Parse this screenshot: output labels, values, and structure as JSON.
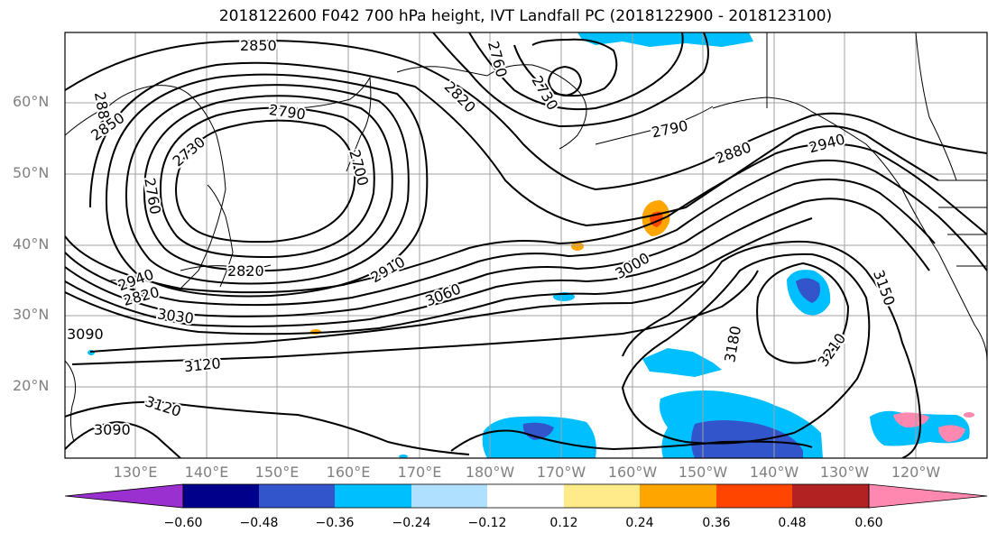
{
  "title": "2018122600 F042 700 hPa height, IVT Landfall PC (2018122900 - 2018123100)",
  "lat_labels": [
    "60°N",
    "50°N",
    "40°N",
    "30°N",
    "20°N"
  ],
  "lon_labels": [
    "130°E",
    "140°E",
    "150°E",
    "160°E",
    "170°E",
    "180°W",
    "170°W",
    "160°W",
    "150°W",
    "140°W",
    "130°W",
    "120°W"
  ],
  "contour_labels": [
    "2850",
    "2880",
    "2850",
    "2790",
    "2730",
    "2760",
    "2700",
    "2760",
    "2730",
    "2820",
    "2790",
    "2880",
    "2820",
    "2910",
    "3000",
    "3060",
    "2940",
    "2820",
    "3030",
    "3090",
    "3120",
    "3120",
    "3090",
    "3180",
    "3210",
    "3150",
    "2940"
  ],
  "colorbar": {
    "ticks": [
      "−0.60",
      "−0.48",
      "−0.36",
      "−0.24",
      "−0.12",
      "0.12",
      "0.24",
      "0.36",
      "0.48",
      "0.60"
    ],
    "colors": [
      "#9b30d0",
      "#00008b",
      "#3355cc",
      "#00bfff",
      "#b0e0ff",
      "#ffffff",
      "#ffeb8a",
      "#ffa500",
      "#ff4500",
      "#b22222",
      "#ff88b0"
    ]
  },
  "colors": {
    "grid": "#a0a0a0",
    "contour": "#000000",
    "frame": "#000000"
  }
}
